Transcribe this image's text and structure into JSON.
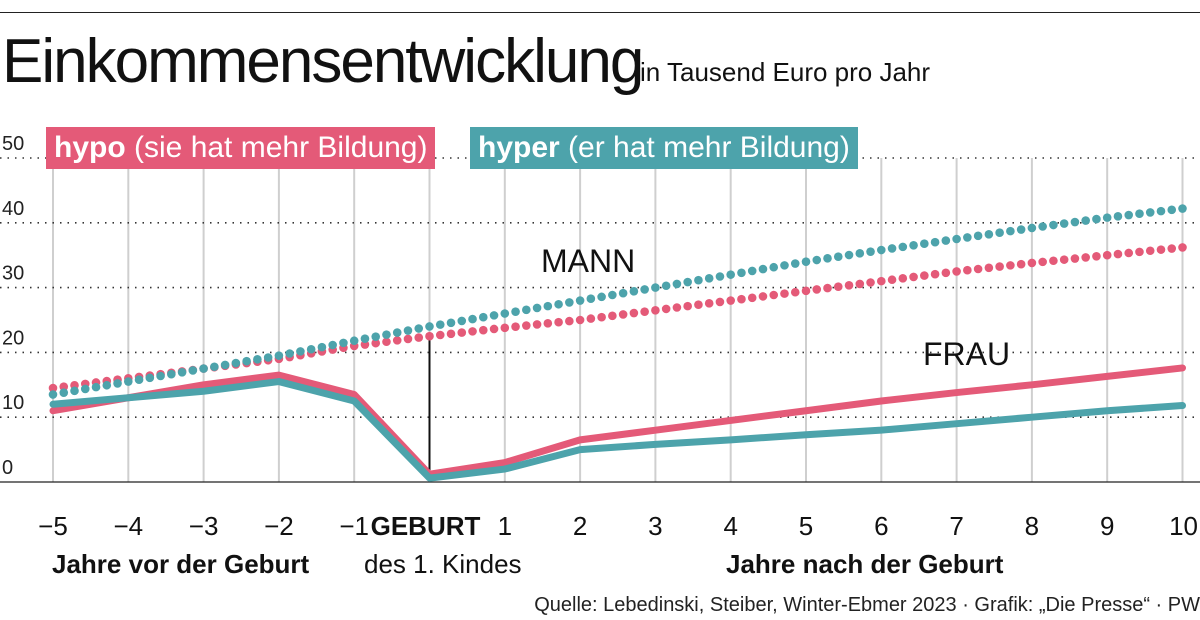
{
  "title": "Einkommensentwicklung",
  "subtitle": "in Tausend Euro pro Jahr",
  "source": "Quelle: Lebedinski, Steiber, Winter-Ebmer 2023 · Grafik: „Die Presse“ · PW",
  "legend": {
    "hypo": {
      "name": "hypo",
      "desc": "(sie hat mehr Bildung)",
      "color": "#e45a78"
    },
    "hyper": {
      "name": "hyper",
      "desc": "(er hat mehr Bildung)",
      "color": "#4da3ab"
    }
  },
  "annotations": {
    "mann": "MANN",
    "frau": "FRAU"
  },
  "x_captions": {
    "before": "Jahre vor der Geburt",
    "birth": "des 1. Kindes",
    "after": "Jahre nach der Geburt"
  },
  "chart_data": {
    "type": "line",
    "x": [
      -5,
      -4,
      -3,
      -2,
      -1,
      0,
      1,
      2,
      3,
      4,
      5,
      6,
      7,
      8,
      9,
      10
    ],
    "x_tick_labels": [
      "−5",
      "−4",
      "−3",
      "−2",
      "−1",
      "GEBURT",
      "1",
      "2",
      "3",
      "4",
      "5",
      "6",
      "7",
      "8",
      "9",
      "10"
    ],
    "ylim": [
      0,
      50
    ],
    "y_ticks": [
      0,
      10,
      20,
      30,
      40,
      50
    ],
    "grid": "dotted horizontal, solid vertical",
    "legend_position": "top-left",
    "series": [
      {
        "name": "hypo (sie hat mehr Bildung)",
        "group": "MANN",
        "style": "dotted",
        "color": "#e45a78",
        "values": [
          14.5,
          16,
          17.5,
          19,
          21,
          22.5,
          23.8,
          25,
          26.5,
          28,
          29.5,
          31,
          32.5,
          33.8,
          35,
          36.2
        ]
      },
      {
        "name": "hyper (er hat mehr Bildung)",
        "group": "MANN",
        "style": "dotted",
        "color": "#4da3ab",
        "values": [
          13.5,
          15.5,
          17.5,
          19.5,
          21.8,
          24,
          26,
          28,
          30,
          32,
          34,
          35.8,
          37.5,
          39.2,
          40.8,
          42.2
        ]
      },
      {
        "name": "hypo (sie hat mehr Bildung)",
        "group": "FRAU",
        "style": "solid",
        "color": "#e45a78",
        "values": [
          11,
          13,
          15,
          16.5,
          13.5,
          1.2,
          3,
          6.5,
          8,
          9.5,
          11,
          12.5,
          13.8,
          15,
          16.3,
          17.6
        ]
      },
      {
        "name": "hyper (er hat mehr Bildung)",
        "group": "FRAU",
        "style": "solid",
        "color": "#4da3ab",
        "values": [
          12,
          13,
          14,
          15.5,
          12.5,
          0.6,
          2,
          5,
          5.8,
          6.5,
          7.3,
          8,
          9,
          10,
          11,
          11.8
        ]
      }
    ]
  }
}
